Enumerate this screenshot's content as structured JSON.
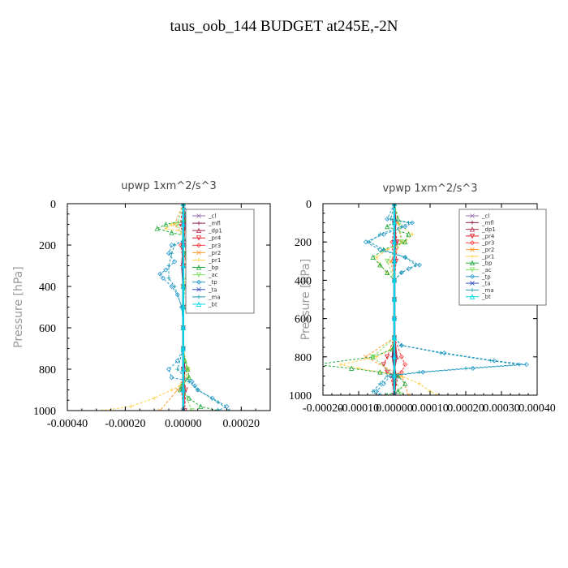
{
  "figure": {
    "title": "taus_oob_144  BUDGET at245E,-2N"
  },
  "chart_data": [
    {
      "type": "line",
      "title": "upwp   1xm^2/s^3",
      "xlabel": "",
      "ylabel": "Pressure  [hPa]",
      "xlim": [
        -0.0004,
        0.0003
      ],
      "ylim": [
        1000,
        0
      ],
      "xticks": [
        "-0.00040",
        "-0.00020",
        "0.00000",
        "0.00020"
      ],
      "xtick_values": [
        -0.0004,
        -0.0002,
        0.0,
        0.0002
      ],
      "yticks": [
        "0",
        "200",
        "400",
        "600",
        "800",
        "1000"
      ],
      "ytick_values": [
        0,
        200,
        400,
        600,
        800,
        1000
      ],
      "legend_position": "top-right",
      "series": [
        {
          "name": "_cl",
          "color": "#9a6fb0",
          "y": [
            0,
            100,
            200,
            300,
            400,
            500,
            600,
            700,
            800,
            900,
            1000
          ],
          "x": [
            0,
            0,
            0,
            0,
            0,
            0,
            0,
            0,
            0,
            0,
            0
          ]
        },
        {
          "name": "_mfl",
          "color": "#8b1a4a",
          "y": [
            0,
            100,
            200,
            300,
            400,
            500,
            600,
            700,
            800,
            900,
            1000
          ],
          "x": [
            0,
            5e-06,
            0,
            -4e-06,
            0,
            0,
            0,
            0,
            4e-06,
            0,
            0
          ]
        },
        {
          "name": "_dp1",
          "color": "#b0304a",
          "y": [
            0,
            100,
            200,
            300,
            400,
            500,
            600,
            700,
            800,
            900,
            1000
          ],
          "x": [
            0,
            4e-06,
            -3e-06,
            0,
            0,
            0,
            0,
            0,
            0,
            4e-06,
            0
          ]
        },
        {
          "name": "_pr4",
          "color": "#e0202a",
          "y": [
            0,
            100,
            200,
            300,
            400,
            500,
            600,
            700,
            800,
            900,
            1000
          ],
          "x": [
            0,
            -1e-05,
            1e-05,
            0,
            0,
            0,
            0,
            0,
            0,
            8e-06,
            5e-06
          ]
        },
        {
          "name": "_pr3",
          "color": "#ff4040",
          "y": [
            0,
            100,
            200,
            300,
            400,
            500,
            600,
            700,
            800,
            900,
            1000
          ],
          "x": [
            0,
            1.2e-05,
            -8e-06,
            0,
            0,
            0,
            0,
            0,
            0,
            -6e-06,
            0
          ]
        },
        {
          "name": "_pr2",
          "color": "#ff9a30",
          "y": [
            0,
            100,
            200,
            300,
            400,
            500,
            600,
            700,
            800,
            900,
            1000
          ],
          "x": [
            0,
            -3e-05,
            2e-05,
            0,
            0,
            0,
            0,
            0,
            1.5e-05,
            -2e-05,
            -8e-05
          ]
        },
        {
          "name": "_pr1",
          "color": "#ffd24a",
          "y": [
            0,
            80,
            100,
            120,
            140,
            160,
            200,
            240,
            300,
            340,
            400,
            500,
            600,
            700,
            760,
            800,
            840,
            880,
            900,
            940,
            980,
            1000
          ],
          "x": [
            0,
            1e-05,
            -4e-05,
            -6e-05,
            2e-05,
            3e-05,
            2e-05,
            1e-05,
            1e-05,
            1.5e-05,
            0,
            0,
            0,
            0,
            5e-06,
            2e-05,
            1.5e-05,
            -1e-05,
            -4e-05,
            -0.0001,
            -0.00018,
            -0.00028
          ]
        },
        {
          "name": "_bp",
          "color": "#1faa3a",
          "y": [
            0,
            80,
            100,
            120,
            140,
            160,
            200,
            240,
            300,
            340,
            400,
            500,
            600,
            700,
            760,
            800,
            840,
            880,
            900,
            940,
            980,
            1000
          ],
          "x": [
            0,
            1e-05,
            -6e-05,
            -9e-05,
            -4e-05,
            2e-05,
            2e-05,
            5e-06,
            1.5e-05,
            2e-05,
            5e-06,
            0,
            0,
            0,
            5e-06,
            1.5e-05,
            2e-05,
            -5e-06,
            -1e-05,
            2e-05,
            6e-05,
            0.00012
          ]
        },
        {
          "name": "_ac",
          "color": "#80e060",
          "y": [
            0,
            100,
            200,
            300,
            400,
            500,
            600,
            700,
            800,
            900,
            1000
          ],
          "x": [
            0,
            -2e-05,
            1.5e-05,
            1.5e-05,
            0,
            0,
            0,
            0,
            1.5e-05,
            0,
            3e-05
          ]
        },
        {
          "name": "_tp",
          "color": "#2a9ad0",
          "y": [
            0,
            60,
            100,
            120,
            160,
            200,
            240,
            280,
            320,
            340,
            360,
            400,
            440,
            500,
            600,
            700,
            760,
            800,
            840,
            860,
            880,
            900,
            940,
            980,
            1000
          ],
          "x": [
            0,
            1e-05,
            6e-05,
            8e-05,
            6e-05,
            -4e-05,
            -5e-05,
            -3e-05,
            -6e-05,
            -8e-05,
            -7e-05,
            -4e-05,
            -2e-05,
            -5e-06,
            0,
            0,
            -2e-05,
            -5e-05,
            -4e-05,
            3e-05,
            4e-05,
            5e-05,
            0.0001,
            0.00015,
            0.00012
          ]
        },
        {
          "name": "_ta",
          "color": "#3050c0",
          "y": [
            0,
            100,
            200,
            300,
            400,
            500,
            600,
            700,
            800,
            900,
            1000
          ],
          "x": [
            0,
            0,
            0,
            0,
            0,
            0,
            0,
            0,
            0,
            0,
            0
          ]
        },
        {
          "name": "_ma",
          "color": "#1e9ab0",
          "y": [
            0,
            60,
            100,
            120,
            160,
            200,
            240,
            300,
            360,
            400,
            500,
            600,
            700,
            800,
            860,
            900,
            960,
            1000
          ],
          "x": [
            0,
            2e-05,
            0.00019,
            0.00012,
            2e-05,
            -3e-05,
            -4e-05,
            -5e-05,
            -5e-05,
            -3e-05,
            -5e-06,
            0,
            0,
            -2e-05,
            2e-05,
            5e-05,
            0.00012,
            0.00016
          ]
        },
        {
          "name": "_bt",
          "color": "#00d8e8",
          "y": [
            0,
            100,
            200,
            300,
            400,
            500,
            600,
            700,
            800,
            900,
            1000
          ],
          "x": [
            0,
            0,
            0,
            0,
            0,
            0,
            0,
            0,
            0,
            0,
            0
          ]
        }
      ]
    },
    {
      "type": "line",
      "title": "vpwp   1xm^2/s^3",
      "xlabel": "",
      "ylabel": "Pressure  [hPa]",
      "xlim": [
        -0.0002,
        0.0004
      ],
      "ylim": [
        1000,
        0
      ],
      "xticks": [
        "-0.00020",
        "-0.00010",
        "0.00000",
        "0.00010",
        "0.00020",
        "0.00030",
        "0.00040"
      ],
      "xtick_values": [
        -0.0002,
        -0.0001,
        0.0,
        0.0001,
        0.0002,
        0.0003,
        0.0004
      ],
      "yticks": [
        "0",
        "200",
        "400",
        "600",
        "800",
        "1000"
      ],
      "ytick_values": [
        0,
        200,
        400,
        600,
        800,
        1000
      ],
      "legend_position": "top-right",
      "series": [
        {
          "name": "_cl",
          "color": "#9a6fb0",
          "y": [
            0,
            100,
            200,
            300,
            400,
            500,
            600,
            700,
            800,
            900,
            1000
          ],
          "x": [
            0,
            0,
            0,
            0,
            0,
            0,
            0,
            0,
            0,
            0,
            0
          ]
        },
        {
          "name": "_mfl",
          "color": "#8b1a4a",
          "y": [
            0,
            100,
            200,
            300,
            400,
            500,
            600,
            700,
            800,
            900,
            1000
          ],
          "x": [
            0,
            3e-06,
            0,
            0,
            0,
            0,
            0,
            0,
            -5e-06,
            4e-06,
            0
          ]
        },
        {
          "name": "_dp1",
          "color": "#b0304a",
          "y": [
            0,
            100,
            200,
            300,
            400,
            500,
            600,
            700,
            800,
            900,
            1000
          ],
          "x": [
            0,
            0,
            3e-06,
            0,
            0,
            0,
            0,
            0,
            6e-06,
            -4e-06,
            0
          ]
        },
        {
          "name": "_pr4",
          "color": "#e0202a",
          "y": [
            0,
            100,
            200,
            300,
            400,
            500,
            600,
            700,
            800,
            840,
            880,
            900,
            1000
          ],
          "x": [
            0,
            0,
            8e-06,
            5e-06,
            0,
            0,
            0,
            0,
            -2e-05,
            -3e-05,
            -2e-05,
            1e-05,
            0
          ]
        },
        {
          "name": "_pr3",
          "color": "#ff4040",
          "y": [
            0,
            100,
            200,
            300,
            400,
            500,
            600,
            700,
            800,
            840,
            880,
            900,
            1000
          ],
          "x": [
            0,
            0,
            -6e-06,
            -4e-06,
            0,
            0,
            0,
            0,
            2e-05,
            3e-05,
            2e-05,
            -1e-05,
            0
          ]
        },
        {
          "name": "_pr2",
          "color": "#ff9a30",
          "y": [
            0,
            100,
            200,
            300,
            400,
            500,
            600,
            700,
            800,
            900,
            1000
          ],
          "x": [
            0,
            1e-05,
            2e-05,
            -1e-05,
            0,
            0,
            0,
            0,
            -8e-05,
            2e-05,
            4e-05
          ]
        },
        {
          "name": "_pr1",
          "color": "#ffd24a",
          "y": [
            0,
            80,
            120,
            160,
            200,
            240,
            280,
            320,
            360,
            400,
            500,
            600,
            700,
            760,
            800,
            840,
            860,
            880,
            900,
            940,
            980,
            1000
          ],
          "x": [
            0,
            -1e-05,
            2e-05,
            5e-05,
            3e-05,
            -2e-05,
            -5e-05,
            -4e-05,
            -2e-05,
            0,
            0,
            0,
            0,
            -1e-05,
            -5e-05,
            -0.00015,
            -0.0001,
            -4e-05,
            2e-05,
            7e-05,
            0.0001,
            0.00012
          ]
        },
        {
          "name": "_bp",
          "color": "#1faa3a",
          "y": [
            0,
            80,
            120,
            160,
            200,
            240,
            280,
            320,
            360,
            400,
            500,
            600,
            700,
            760,
            800,
            840,
            860,
            880,
            900,
            940,
            980,
            1000
          ],
          "x": [
            0,
            1e-05,
            -2e-05,
            4e-05,
            3e-05,
            -3e-05,
            -6e-05,
            -4e-05,
            -2e-05,
            0,
            0,
            0,
            0,
            -5e-06,
            -6e-05,
            -0.00022,
            -0.00012,
            -4e-05,
            1e-05,
            3e-05,
            1e-05,
            -2e-05
          ]
        },
        {
          "name": "_ac",
          "color": "#80e060",
          "y": [
            0,
            100,
            200,
            300,
            400,
            500,
            600,
            700,
            800,
            900,
            1000
          ],
          "x": [
            0,
            1.5e-05,
            2e-05,
            -2e-05,
            0,
            0,
            0,
            0,
            -6e-05,
            0,
            2e-05
          ]
        },
        {
          "name": "_tp",
          "color": "#2a9ad0",
          "y": [
            0,
            80,
            100,
            120,
            160,
            200,
            240,
            280,
            320,
            340,
            360,
            400,
            500,
            600,
            700,
            740,
            780,
            820,
            840,
            860,
            880,
            900,
            940,
            980,
            1000
          ],
          "x": [
            0,
            -2e-05,
            5e-05,
            3e-05,
            -3e-05,
            -8e-05,
            -4e-05,
            3e-05,
            7e-05,
            4e-05,
            2e-05,
            0,
            0,
            0,
            0,
            2e-05,
            0.00014,
            0.00028,
            0.00037,
            0.00022,
            8e-05,
            -1e-05,
            -3e-05,
            -5e-05,
            -4e-05
          ]
        },
        {
          "name": "_ta",
          "color": "#3050c0",
          "y": [
            0,
            100,
            200,
            300,
            400,
            500,
            600,
            700,
            800,
            900,
            1000
          ],
          "x": [
            0,
            0,
            0,
            0,
            0,
            0,
            0,
            0,
            0,
            0,
            0
          ]
        },
        {
          "name": "_ma",
          "color": "#1e9ab0",
          "y": [
            0,
            80,
            100,
            120,
            160,
            200,
            240,
            280,
            320,
            360,
            400,
            500,
            600,
            700,
            740,
            780,
            820,
            840,
            860,
            880,
            900,
            940,
            980,
            1000
          ],
          "x": [
            0,
            -1e-05,
            4e-05,
            2e-05,
            -4e-05,
            -7e-05,
            -3e-05,
            3e-05,
            6e-05,
            2e-05,
            0,
            0,
            0,
            0,
            2e-05,
            0.00013,
            0.00027,
            0.00035,
            0.0002,
            7e-05,
            -2e-05,
            -4e-05,
            -6e-05,
            -5e-05
          ]
        },
        {
          "name": "_bt",
          "color": "#00d8e8",
          "y": [
            0,
            100,
            200,
            300,
            400,
            500,
            600,
            700,
            800,
            900,
            1000
          ],
          "x": [
            0,
            0,
            0,
            0,
            0,
            0,
            0,
            0,
            0,
            0,
            0
          ]
        }
      ]
    }
  ]
}
